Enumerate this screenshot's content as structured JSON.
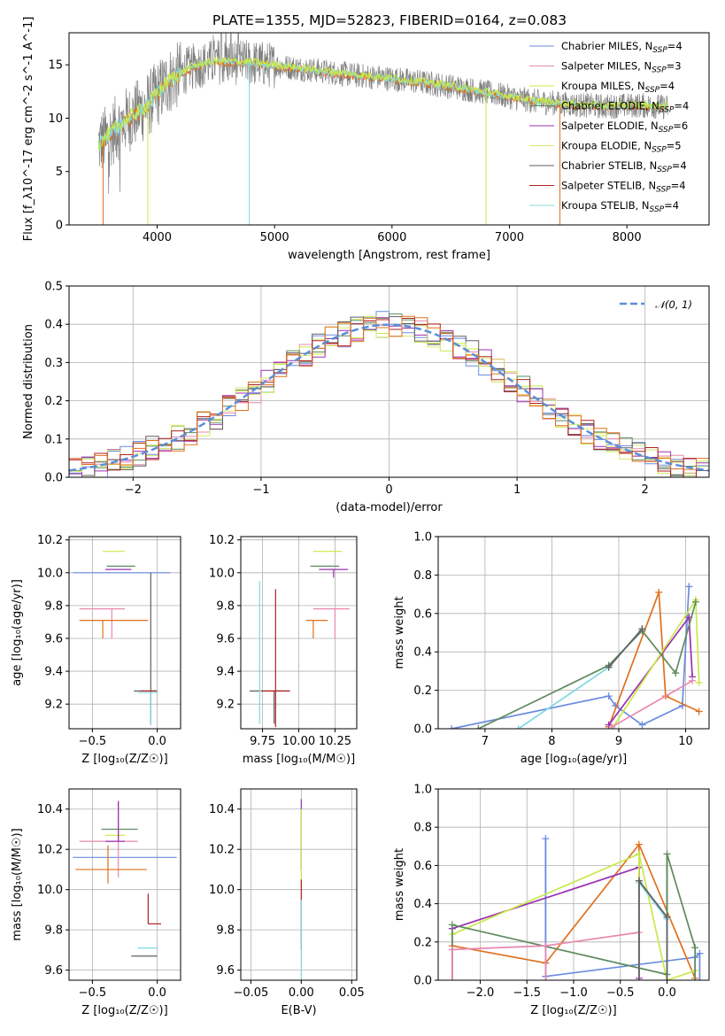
{
  "title": "PLATE=1355, MJD=52823, FIBERID=0164, z=0.083",
  "colors": {
    "chabrier_miles": "#6b8be0",
    "salpeter_miles": "#e888b0",
    "kroupa_miles": "#c9e84a",
    "chabrier_elodie": "#5f8a5f",
    "salpeter_elodie": "#9b30b0",
    "kroupa_elodie": "#d8e870",
    "chabrier_stelib": "#606060",
    "salpeter_stelib": "#b02020",
    "kroupa_stelib": "#80d8e0",
    "orange": "#e07020"
  },
  "chart_data": [
    {
      "id": "spectrum",
      "type": "line",
      "xlabel": "wavelength [Angstrom, rest frame]",
      "ylabel": "Flux [f_λ10^-17 erg cm^-2 s^-1 A^-1]",
      "xlim": [
        3250,
        8700
      ],
      "ylim": [
        0,
        18
      ],
      "xticks": [
        4000,
        5000,
        6000,
        7000,
        8000
      ],
      "yticks": [
        0,
        5,
        10,
        15
      ],
      "continuum": [
        [
          3500,
          7.5
        ],
        [
          3700,
          9.5
        ],
        [
          3900,
          11
        ],
        [
          4100,
          13.5
        ],
        [
          4300,
          14.8
        ],
        [
          4500,
          15.3
        ],
        [
          4800,
          15.2
        ],
        [
          5100,
          14.8
        ],
        [
          5400,
          14.4
        ],
        [
          5700,
          14
        ],
        [
          6000,
          13.7
        ],
        [
          6300,
          13.3
        ],
        [
          6600,
          12.8
        ],
        [
          6900,
          12.2
        ],
        [
          7200,
          11.6
        ],
        [
          7500,
          11.3
        ],
        [
          7800,
          11.1
        ],
        [
          8100,
          11.2
        ],
        [
          8400,
          11
        ]
      ],
      "legend": [
        {
          "name": "Chabrier MILES, N",
          "sub": "SSP",
          "n": "=4",
          "color": "#6b8be0"
        },
        {
          "name": "Salpeter MILES, N",
          "sub": "SSP",
          "n": "=3",
          "color": "#e888b0"
        },
        {
          "name": "Kroupa MILES, N",
          "sub": "SSP",
          "n": "=4",
          "color": "#c9e84a"
        },
        {
          "name": "Chabrier ELODIE, N",
          "sub": "SSP",
          "n": "=4",
          "color": "#5f8a5f"
        },
        {
          "name": "Salpeter ELODIE, N",
          "sub": "SSP",
          "n": "=6",
          "color": "#9b30b0"
        },
        {
          "name": "Kroupa ELODIE, N",
          "sub": "SSP",
          "n": "=5",
          "color": "#d8e870"
        },
        {
          "name": "Chabrier STELIB, N",
          "sub": "SSP",
          "n": "=4",
          "color": "#606060"
        },
        {
          "name": "Salpeter STELIB, N",
          "sub": "SSP",
          "n": "=4",
          "color": "#b02020"
        },
        {
          "name": "Kroupa STELIB, N",
          "sub": "SSP",
          "n": "=4",
          "color": "#80d8e0"
        }
      ]
    },
    {
      "id": "residuals",
      "type": "line",
      "xlabel": "(data-model)/error",
      "ylabel": "Normed distribution",
      "xlim": [
        -2.5,
        2.5
      ],
      "ylim": [
        0,
        0.5
      ],
      "xticks": [
        -2,
        -1,
        0,
        1,
        2
      ],
      "yticks": [
        0.0,
        0.1,
        0.2,
        0.3,
        0.4,
        0.5
      ],
      "legend_label": "𝒩(0, 1)",
      "legend_color": "#5b8fd9",
      "bin_width": 0.1
    },
    {
      "id": "age_vs_Z",
      "type": "scatter",
      "xlabel": "Z [log₁₀(Z/Z☉)]",
      "ylabel": "age [log₁₀(age/yr)]",
      "xlim": [
        -0.68,
        0.18
      ],
      "ylim": [
        9.05,
        10.22
      ],
      "xticks": [
        -0.5,
        0.0
      ],
      "yticks": [
        9.2,
        9.4,
        9.6,
        9.8,
        10.0,
        10.2
      ],
      "points": [
        {
          "x": -0.05,
          "y": 10.0,
          "xerr": [
            0.6,
            0.15
          ],
          "yerr": [
            0.0,
            0.0
          ],
          "color": "#6b8be0"
        },
        {
          "x": -0.35,
          "y": 9.78,
          "xerr": [
            0.25,
            0.1
          ],
          "yerr": [
            0.18,
            0.0
          ],
          "color": "#e888b0"
        },
        {
          "x": -0.3,
          "y": 10.13,
          "xerr": [
            0.12,
            0.05
          ],
          "yerr": [
            0.0,
            0.0
          ],
          "color": "#c9e84a"
        },
        {
          "x": -0.27,
          "y": 10.04,
          "xerr": [
            0.12,
            0.1
          ],
          "yerr": [
            0.0,
            0.0
          ],
          "color": "#5f8a5f"
        },
        {
          "x": -0.25,
          "y": 10.02,
          "xerr": [
            0.15,
            0.05
          ],
          "yerr": [
            0.0,
            0.0
          ],
          "color": "#9b30b0"
        },
        {
          "x": -0.42,
          "y": 9.71,
          "xerr": [
            0.18,
            0.35
          ],
          "yerr": [
            0.11,
            0.0
          ],
          "color": "#e07020"
        },
        {
          "x": -0.05,
          "y": 9.28,
          "xerr": [
            0.13,
            0.05
          ],
          "yerr": [
            0.2,
            0.72
          ],
          "color": "#606060"
        },
        {
          "x": -0.05,
          "y": 9.27,
          "xerr": [
            0.1,
            0.05
          ],
          "yerr": [
            0.2,
            0.0
          ],
          "color": "#80d8e0"
        },
        {
          "x": -0.03,
          "y": 9.28,
          "xerr": [
            0.1,
            0.02
          ],
          "yerr": [
            0.0,
            0.0
          ],
          "color": "#b02020"
        }
      ]
    },
    {
      "id": "age_vs_mass",
      "type": "scatter",
      "xlabel": "mass [log₁₀(M/M☉)]",
      "ylabel": "",
      "xlim": [
        9.6,
        10.4
      ],
      "ylim": [
        9.05,
        10.22
      ],
      "xticks": [
        9.75,
        10.0,
        10.25
      ],
      "yticks": [
        9.2,
        9.4,
        9.6,
        9.8,
        10.0,
        10.2
      ],
      "points": [
        {
          "x": 10.2,
          "y": 10.0,
          "xerr": [
            0.0,
            0.0
          ],
          "yerr": [
            0.0,
            0.0
          ],
          "color": "#6b8be0"
        },
        {
          "x": 10.25,
          "y": 9.78,
          "xerr": [
            0.15,
            0.1
          ],
          "yerr": [
            0.18,
            0.0
          ],
          "color": "#e888b0"
        },
        {
          "x": 10.2,
          "y": 10.13,
          "xerr": [
            0.1,
            0.1
          ],
          "yerr": [
            0.0,
            0.0
          ],
          "color": "#c9e84a"
        },
        {
          "x": 10.18,
          "y": 10.04,
          "xerr": [
            0.1,
            0.1
          ],
          "yerr": [
            0.0,
            0.0
          ],
          "color": "#5f8a5f"
        },
        {
          "x": 10.24,
          "y": 10.02,
          "xerr": [
            0.1,
            0.1
          ],
          "yerr": [
            0.05,
            0.0
          ],
          "color": "#9b30b0"
        },
        {
          "x": 10.1,
          "y": 9.71,
          "xerr": [
            0.05,
            0.1
          ],
          "yerr": [
            0.11,
            0.0
          ],
          "color": "#e07020"
        },
        {
          "x": 9.83,
          "y": 9.28,
          "xerr": [
            0.17,
            0.1
          ],
          "yerr": [
            0.2,
            0.0
          ],
          "color": "#606060"
        },
        {
          "x": 9.73,
          "y": 9.28,
          "xerr": [
            0.0,
            0.05
          ],
          "yerr": [
            0.2,
            0.67
          ],
          "color": "#80d8e0"
        },
        {
          "x": 9.84,
          "y": 9.28,
          "xerr": [
            0.1,
            0.1
          ],
          "yerr": [
            0.22,
            0.62
          ],
          "color": "#b02020"
        }
      ]
    },
    {
      "id": "weight_vs_age",
      "type": "line",
      "xlabel": "age [log₁₀(age/yr)]",
      "ylabel": "mass weight",
      "xlim": [
        6.3,
        10.35
      ],
      "ylim": [
        0.0,
        1.0
      ],
      "xticks": [
        7,
        8,
        9,
        10
      ],
      "yticks": [
        0.0,
        0.2,
        0.4,
        0.6,
        0.8,
        1.0
      ],
      "series": [
        {
          "color": "#6b8be0",
          "x": [
            6.5,
            8.85,
            8.95,
            9.35,
            9.95,
            10.05
          ],
          "y": [
            0.0,
            0.17,
            0.12,
            0.02,
            0.12,
            0.74
          ]
        },
        {
          "color": "#e07020",
          "x": [
            8.85,
            9.6,
            9.7,
            10.2
          ],
          "y": [
            0.01,
            0.71,
            0.17,
            0.09
          ]
        },
        {
          "color": "#9b30b0",
          "x": [
            8.85,
            10.05,
            10.1
          ],
          "y": [
            0.02,
            0.58,
            0.27
          ]
        },
        {
          "color": "#c9e84a",
          "x": [
            8.9,
            10.15,
            10.2
          ],
          "y": [
            0.0,
            0.67,
            0.24
          ]
        },
        {
          "color": "#5f8a5f",
          "x": [
            6.9,
            8.85,
            9.35,
            9.85,
            10.15
          ],
          "y": [
            0.0,
            0.33,
            0.51,
            0.29,
            0.66
          ]
        },
        {
          "color": "#80d8e0",
          "x": [
            7.5,
            8.85,
            9.35
          ],
          "y": [
            0.0,
            0.32,
            0.52
          ]
        },
        {
          "color": "#e888b0",
          "x": [
            8.9,
            10.1
          ],
          "y": [
            0.01,
            0.25
          ]
        },
        {
          "color": "#606060",
          "x": [
            8.85,
            9.35
          ],
          "y": [
            0.32,
            0.52
          ]
        }
      ]
    },
    {
      "id": "mass_vs_Z",
      "type": "scatter",
      "xlabel": "Z [log₁₀(Z/Z☉)]",
      "ylabel": "mass [log₁₀(M/M☉)]",
      "xlim": [
        -0.68,
        0.18
      ],
      "ylim": [
        9.55,
        10.5
      ],
      "xticks": [
        -0.5,
        0.0
      ],
      "yticks": [
        9.6,
        9.8,
        10.0,
        10.2,
        10.4
      ],
      "points": [
        {
          "x": -0.05,
          "y": 10.16,
          "xerr": [
            0.6,
            0.2
          ],
          "yerr": [
            0.0,
            0.0
          ],
          "color": "#6b8be0"
        },
        {
          "x": -0.3,
          "y": 10.24,
          "xerr": [
            0.3,
            0.15
          ],
          "yerr": [
            0.18,
            0.2
          ],
          "color": "#e888b0"
        },
        {
          "x": -0.3,
          "y": 10.27,
          "xerr": [
            0.1,
            0.05
          ],
          "yerr": [
            0.0,
            0.0
          ],
          "color": "#c9e84a"
        },
        {
          "x": -0.3,
          "y": 10.3,
          "xerr": [
            0.13,
            0.15
          ],
          "yerr": [
            0.0,
            0.0
          ],
          "color": "#5f8a5f"
        },
        {
          "x": -0.3,
          "y": 10.24,
          "xerr": [
            0.1,
            0.05
          ],
          "yerr": [
            0.0,
            0.2
          ],
          "color": "#9b30b0"
        },
        {
          "x": -0.38,
          "y": 10.1,
          "xerr": [
            0.25,
            0.3
          ],
          "yerr": [
            0.07,
            0.12
          ],
          "color": "#e07020"
        },
        {
          "x": -0.07,
          "y": 9.83,
          "xerr": [
            0.0,
            0.1
          ],
          "yerr": [
            0.0,
            0.15
          ],
          "color": "#b02020"
        },
        {
          "x": -0.05,
          "y": 9.71,
          "xerr": [
            0.1,
            0.05
          ],
          "yerr": [
            0.0,
            0.0
          ],
          "color": "#80d8e0"
        },
        {
          "x": -0.05,
          "y": 9.67,
          "xerr": [
            0.15,
            0.05
          ],
          "yerr": [
            0.0,
            0.0
          ],
          "color": "#606060"
        }
      ]
    },
    {
      "id": "mass_vs_ebv",
      "type": "scatter",
      "xlabel": "E(B-V)",
      "ylabel": "",
      "xlim": [
        -0.06,
        0.055
      ],
      "ylim": [
        9.55,
        10.5
      ],
      "xticks": [
        -0.05,
        0.0,
        0.05
      ],
      "yticks": [
        9.6,
        9.8,
        10.0,
        10.2,
        10.4
      ],
      "points": [
        {
          "x": 0.0,
          "y": 10.3,
          "xerr": [
            0,
            0
          ],
          "yerr": [
            0.2,
            0.15
          ],
          "color": "#9b30b0"
        },
        {
          "x": 0.0,
          "y": 10.2,
          "xerr": [
            0,
            0
          ],
          "yerr": [
            0.2,
            0.2
          ],
          "color": "#c9e84a"
        },
        {
          "x": 0.0,
          "y": 9.9,
          "xerr": [
            0,
            0
          ],
          "yerr": [
            0.2,
            0.15
          ],
          "color": "#b02020"
        },
        {
          "x": 0.0,
          "y": 9.75,
          "xerr": [
            0,
            0
          ],
          "yerr": [
            0.2,
            0.2
          ],
          "color": "#80d8e0"
        }
      ]
    },
    {
      "id": "weight_vs_Z",
      "type": "line",
      "xlabel": "Z [log₁₀(Z/Z☉)]",
      "ylabel": "mass weight",
      "xlim": [
        -2.45,
        0.45
      ],
      "ylim": [
        0.0,
        1.0
      ],
      "xticks": [
        -2.0,
        -1.5,
        -1.0,
        -0.5,
        0.0
      ],
      "yticks": [
        0.0,
        0.2,
        0.4,
        0.6,
        0.8,
        1.0
      ],
      "series": [
        {
          "color": "#6b8be0",
          "x": [
            -1.3,
            -1.3,
            0.3,
            0.35
          ],
          "y": [
            0.74,
            0.02,
            0.12,
            0.14
          ]
        },
        {
          "color": "#e07020",
          "x": [
            -2.3,
            -1.3,
            -0.3,
            0.3
          ],
          "y": [
            0.18,
            0.09,
            0.71,
            0.01
          ]
        },
        {
          "color": "#9b30b0",
          "x": [
            -2.3,
            -0.3,
            -0.3
          ],
          "y": [
            0.27,
            0.59,
            0.01
          ]
        },
        {
          "color": "#c9e84a",
          "x": [
            -2.3,
            -0.3,
            0.0,
            0.3
          ],
          "y": [
            0.24,
            0.66,
            0.0,
            0.05
          ]
        },
        {
          "color": "#5f8a5f",
          "x": [
            -2.3,
            0.0,
            0.0,
            0.3
          ],
          "y": [
            0.29,
            0.03,
            0.66,
            0.17
          ]
        },
        {
          "color": "#80d8e0",
          "x": [
            -0.3,
            0.0,
            0.0
          ],
          "y": [
            0.51,
            0.32,
            0.0
          ]
        },
        {
          "color": "#e888b0",
          "x": [
            -2.3,
            -1.3,
            -0.3
          ],
          "y": [
            0.16,
            0.18,
            0.25
          ]
        },
        {
          "color": "#606060",
          "x": [
            -0.3,
            0.0
          ],
          "y": [
            0.52,
            0.33
          ]
        }
      ]
    }
  ]
}
